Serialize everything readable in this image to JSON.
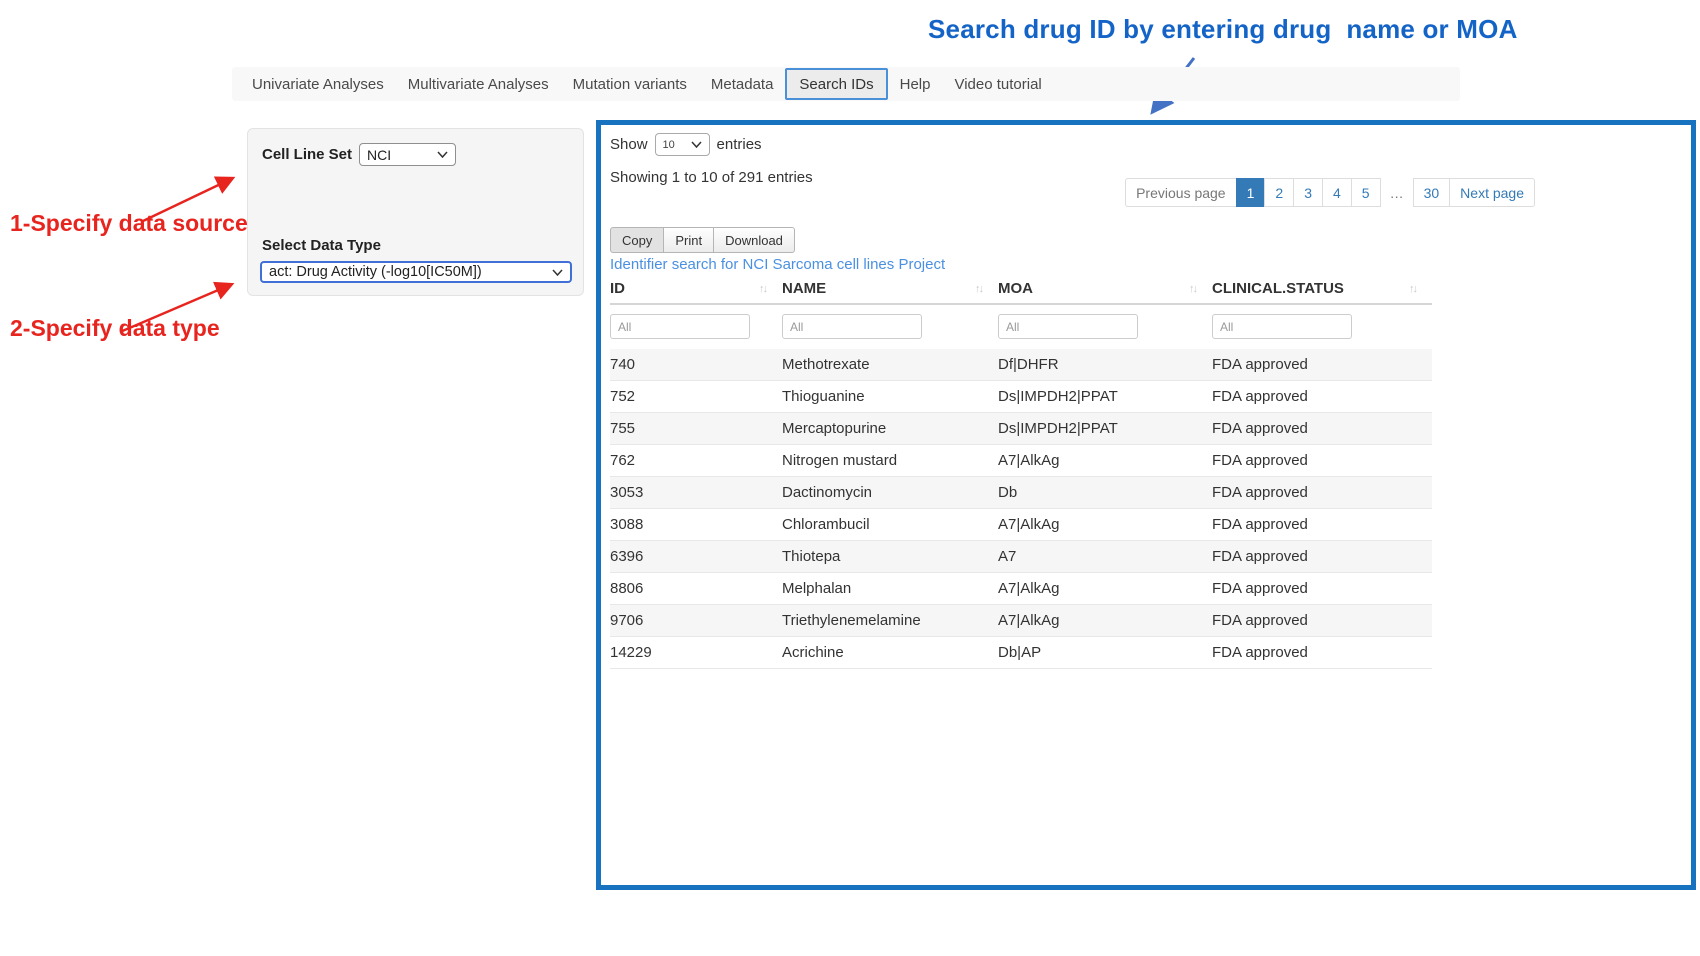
{
  "annotation": {
    "title": "Search drug ID by entering drug  name or MOA",
    "step1": "1-Specify data source",
    "step2": "2-Specify data type"
  },
  "navbar": {
    "items": [
      {
        "label": "Univariate Analyses",
        "active": false
      },
      {
        "label": "Multivariate Analyses",
        "active": false
      },
      {
        "label": "Mutation variants",
        "active": false
      },
      {
        "label": "Metadata",
        "active": false
      },
      {
        "label": "Search IDs",
        "active": true
      },
      {
        "label": "Help",
        "active": false
      },
      {
        "label": "Video tutorial",
        "active": false
      }
    ]
  },
  "sidebar": {
    "cell_line_set_label": "Cell Line Set",
    "cell_line_set_value": "NCI",
    "data_type_label": "Select Data Type",
    "data_type_value": "act: Drug Activity (-log10[IC50M])"
  },
  "main": {
    "show_label": "Show",
    "page_length": "10",
    "entries_label": "entries",
    "info": "Showing 1 to 10 of 291 entries",
    "buttons": [
      "Copy",
      "Print",
      "Download"
    ],
    "link": "Identifier search for NCI Sarcoma cell lines Project",
    "pagination": {
      "prev": "Previous page",
      "pages": [
        "1",
        "2",
        "3",
        "4",
        "5",
        "…",
        "30"
      ],
      "active_page": "1",
      "next": "Next page"
    },
    "table": {
      "columns": [
        "ID",
        "NAME",
        "MOA",
        "CLINICAL.STATUS"
      ],
      "filter_placeholder": "All",
      "rows": [
        [
          "740",
          "Methotrexate",
          "Df|DHFR",
          "FDA approved"
        ],
        [
          "752",
          "Thioguanine",
          "Ds|IMPDH2|PPAT",
          "FDA approved"
        ],
        [
          "755",
          "Mercaptopurine",
          "Ds|IMPDH2|PPAT",
          "FDA approved"
        ],
        [
          "762",
          "Nitrogen mustard",
          "A7|AlkAg",
          "FDA approved"
        ],
        [
          "3053",
          "Dactinomycin",
          "Db",
          "FDA approved"
        ],
        [
          "3088",
          "Chlorambucil",
          "A7|AlkAg",
          "FDA approved"
        ],
        [
          "6396",
          "Thiotepa",
          "A7",
          "FDA approved"
        ],
        [
          "8806",
          "Melphalan",
          "A7|AlkAg",
          "FDA approved"
        ],
        [
          "9706",
          "Triethylenemelamine",
          "A7|AlkAg",
          "FDA approved"
        ],
        [
          "14229",
          "Acrichine",
          "Db|AP",
          "FDA approved"
        ]
      ]
    }
  },
  "colors": {
    "title-blue": "#1464c8",
    "anno-red": "#e8241f",
    "arrow-blue": "#4472c4",
    "panel-blue": "#1773c0",
    "page-active": "#337ab7",
    "link-blue": "#4a90e2"
  }
}
